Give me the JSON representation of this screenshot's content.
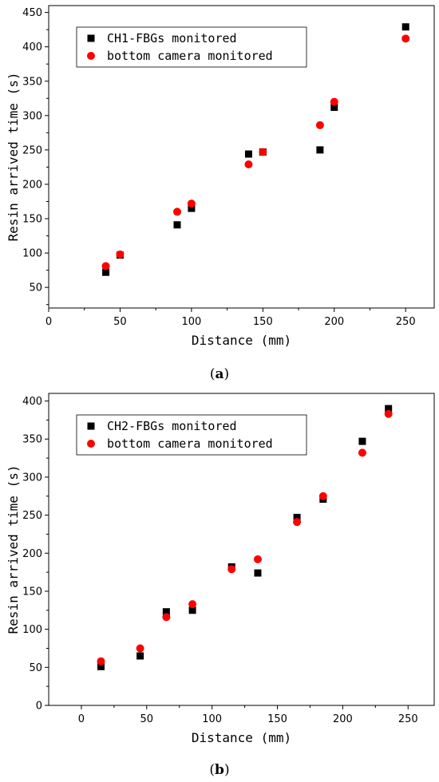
{
  "chart_data": [
    {
      "type": "scatter",
      "panel_label_open": "(",
      "panel_label_letter": "a",
      "panel_label_close": ")",
      "xlabel": "Distance (mm)",
      "ylabel": "Resin arrived time (s)",
      "xlim": [
        0,
        270
      ],
      "ylim": [
        20,
        460
      ],
      "xticks": [
        0,
        50,
        100,
        150,
        200,
        250
      ],
      "yticks": [
        50,
        100,
        150,
        200,
        250,
        300,
        350,
        400,
        450
      ],
      "legend_position": "top-left",
      "series": [
        {
          "name": "CH1-FBGs monitored",
          "marker": "square",
          "color": "#000000",
          "x": [
            40,
            50,
            90,
            100,
            140,
            150,
            190,
            200,
            250
          ],
          "y": [
            72,
            97,
            141,
            165,
            244,
            247,
            250,
            312,
            429
          ]
        },
        {
          "name": "bottom camera monitored",
          "marker": "circle",
          "color": "#ff0000",
          "x": [
            40,
            50,
            90,
            100,
            140,
            150,
            190,
            200,
            250
          ],
          "y": [
            81,
            98,
            160,
            172,
            229,
            247,
            286,
            320,
            412
          ]
        }
      ]
    },
    {
      "type": "scatter",
      "panel_label_open": "(",
      "panel_label_letter": "b",
      "panel_label_close": ")",
      "xlabel": "Distance (mm)",
      "ylabel": "Resin arrived time (s)",
      "xlim": [
        -25,
        270
      ],
      "ylim": [
        0,
        410
      ],
      "xticks": [
        0,
        50,
        100,
        150,
        200,
        250
      ],
      "yticks": [
        0,
        50,
        100,
        150,
        200,
        250,
        300,
        350,
        400
      ],
      "legend_position": "top-left",
      "series": [
        {
          "name": "CH2-FBGs monitored",
          "marker": "square",
          "color": "#000000",
          "x": [
            15,
            45,
            65,
            85,
            115,
            135,
            165,
            185,
            215,
            235
          ],
          "y": [
            51,
            65,
            123,
            125,
            182,
            174,
            247,
            271,
            347,
            390
          ]
        },
        {
          "name": "bottom camera monitored",
          "marker": "circle",
          "color": "#ff0000",
          "x": [
            15,
            45,
            65,
            85,
            115,
            135,
            165,
            185,
            215,
            235
          ],
          "y": [
            58,
            75,
            116,
            133,
            179,
            192,
            241,
            275,
            332,
            383
          ]
        }
      ]
    }
  ]
}
